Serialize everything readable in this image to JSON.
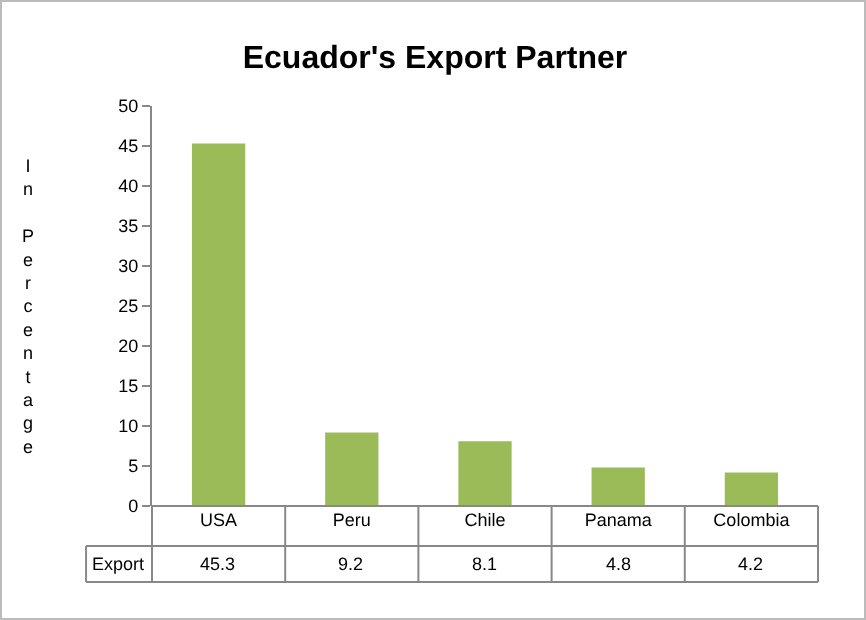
{
  "chart_data": {
    "type": "bar",
    "title": "Ecuador's Export Partner",
    "ylabel": "In Percentage",
    "categories": [
      "USA",
      "Peru",
      "Chile",
      "Panama",
      "Colombia"
    ],
    "series": [
      {
        "name": "Export",
        "color": "#9bbb59",
        "values": [
          45.3,
          9.2,
          8.1,
          4.8,
          4.2
        ]
      }
    ],
    "ylim": [
      0,
      50
    ],
    "yticks": [
      0,
      5,
      10,
      15,
      20,
      25,
      30,
      35,
      40,
      45,
      50
    ],
    "data_labels": true,
    "legend": false,
    "grid": false
  }
}
